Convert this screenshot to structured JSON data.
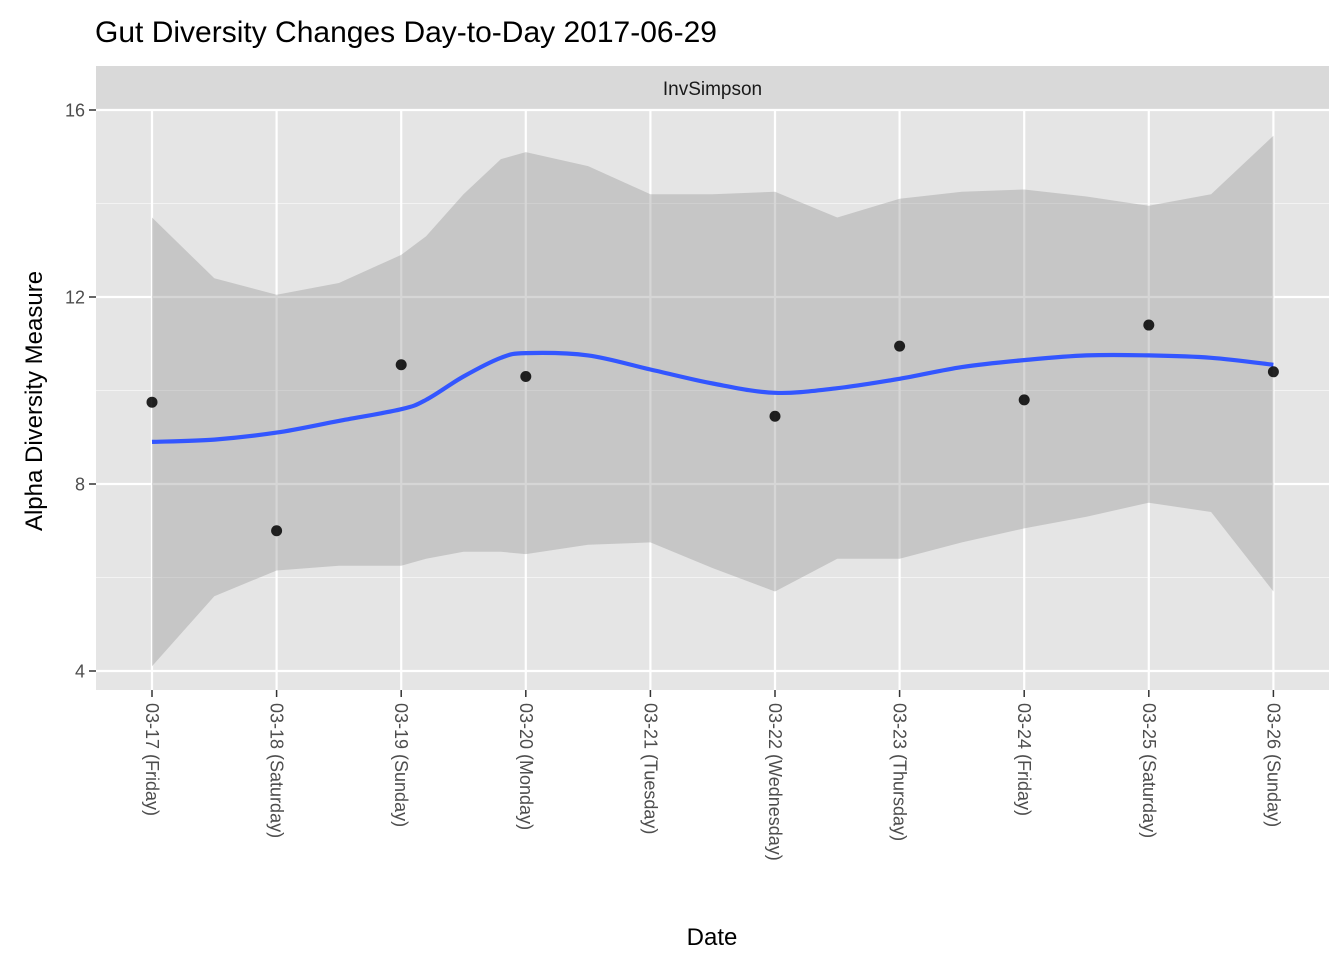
{
  "chart_data": {
    "type": "scatter",
    "title": "Gut Diversity Changes Day-to-Day 2017-06-29",
    "facet": "InvSimpson",
    "xlabel": "Date",
    "ylabel": "Alpha Diversity Measure",
    "categories": [
      "03-17 (Friday)",
      "03-18 (Saturday)",
      "03-19 (Sunday)",
      "03-20 (Monday)",
      "03-21 (Tuesday)",
      "03-22 (Wednesday)",
      "03-23 (Thursday)",
      "03-24 (Friday)",
      "03-25 (Saturday)",
      "03-26 (Sunday)"
    ],
    "yticks": [
      4,
      8,
      12,
      16
    ],
    "ylim": [
      3.5,
      16.9
    ],
    "grid": true,
    "points": [
      {
        "x": "03-17 (Friday)",
        "y": 9.75
      },
      {
        "x": "03-18 (Saturday)",
        "y": 7.0
      },
      {
        "x": "03-19 (Sunday)",
        "y": 10.55
      },
      {
        "x": "03-20 (Monday)",
        "y": 10.3
      },
      {
        "x": "03-22 (Wednesday)",
        "y": 9.45
      },
      {
        "x": "03-23 (Thursday)",
        "y": 10.95
      },
      {
        "x": "03-24 (Friday)",
        "y": 9.8
      },
      {
        "x": "03-25 (Saturday)",
        "y": 11.4
      },
      {
        "x": "03-26 (Sunday)",
        "y": 10.4
      }
    ],
    "smooth": {
      "x": [
        0,
        0.5,
        1,
        1.5,
        2,
        2.2,
        2.5,
        2.8,
        3,
        3.5,
        4,
        4.5,
        5,
        5.5,
        6,
        6.5,
        7,
        7.5,
        8,
        8.5,
        9
      ],
      "y": [
        8.9,
        8.95,
        9.1,
        9.35,
        9.6,
        9.8,
        10.3,
        10.7,
        10.8,
        10.75,
        10.45,
        10.15,
        9.95,
        10.05,
        10.25,
        10.5,
        10.65,
        10.75,
        10.75,
        10.7,
        10.55
      ],
      "lower": [
        4.1,
        5.6,
        6.15,
        6.25,
        6.25,
        6.4,
        6.55,
        6.55,
        6.5,
        6.7,
        6.75,
        6.2,
        5.7,
        6.4,
        6.4,
        6.75,
        7.05,
        7.3,
        7.6,
        7.4,
        5.7
      ],
      "upper": [
        13.7,
        12.4,
        12.05,
        12.3,
        12.9,
        13.3,
        14.2,
        14.95,
        15.1,
        14.8,
        14.2,
        14.2,
        14.25,
        13.7,
        14.1,
        14.25,
        14.3,
        14.15,
        13.95,
        14.2,
        15.45
      ]
    },
    "colors": {
      "panel": "#e5e5e5",
      "strip": "#d9d9d9",
      "grid": "#ffffff",
      "ribbon": "#999999",
      "line": "#3356ff",
      "point": "#000000"
    }
  }
}
